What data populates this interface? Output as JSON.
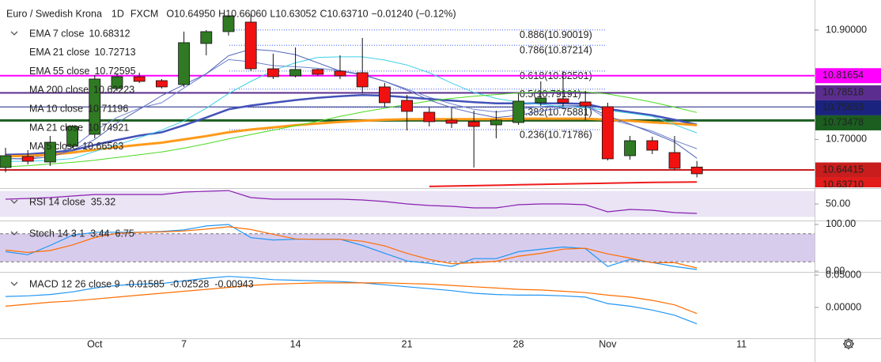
{
  "chart_data": [
    {
      "type": "candlestick",
      "title": "Euro / Swedish Krona",
      "interval": "1D",
      "source": "FXCM",
      "ohlc_labels": [
        "O10.64950",
        "H10.66060",
        "L10.63052",
        "C10.63710"
      ],
      "change": "−0.01240 (−0.12%)",
      "categories": [
        null,
        null,
        null,
        null,
        "Oct",
        null,
        null,
        null,
        "7",
        null,
        null,
        null,
        null,
        "14",
        null,
        null,
        null,
        null,
        "21",
        null,
        null,
        null,
        null,
        "28",
        null,
        null,
        null,
        "Nov",
        null,
        null,
        null,
        null,
        null,
        "11"
      ],
      "open": [
        10.6486,
        10.6688,
        10.6587,
        10.6876,
        10.7093,
        10.7931,
        10.8147,
        10.8075,
        10.8003,
        10.8754,
        10.8971,
        10.9145,
        10.8292,
        10.8162,
        10.8278,
        10.8249,
        10.822,
        10.796,
        10.7714,
        10.7497,
        10.7353,
        10.7324,
        10.7266,
        10.7309,
        10.7671,
        10.7743,
        10.7685,
        10.7598,
        10.6702,
        10.6977,
        10.676,
        10.6495,
        null,
        null
      ],
      "high": [
        10.6847,
        10.6803,
        10.7064,
        10.7266,
        10.8176,
        10.8191,
        10.822,
        10.8104,
        10.8971,
        10.9,
        10.9347,
        10.9289,
        10.8567,
        10.8682,
        10.8292,
        10.8538,
        10.8855,
        10.8032,
        10.7815,
        10.7598,
        10.7569,
        10.7526,
        10.7526,
        10.7844,
        10.8061,
        10.8249,
        10.7887,
        10.7671,
        10.7064,
        10.7049,
        10.7064,
        10.6606,
        null,
        null
      ],
      "low": [
        10.6399,
        10.6543,
        10.6515,
        10.6847,
        10.702,
        10.7887,
        10.8032,
        10.7931,
        10.796,
        10.8538,
        10.8899,
        10.8249,
        10.8104,
        10.8133,
        10.8162,
        10.8104,
        10.7844,
        10.7598,
        10.7165,
        10.7237,
        10.7208,
        10.6486,
        10.702,
        10.7266,
        10.7613,
        10.7598,
        10.7353,
        10.6616,
        10.663,
        10.6731,
        10.6442,
        10.63052,
        null,
        null
      ],
      "close": [
        10.6702,
        10.6601,
        10.6948,
        10.7237,
        10.8104,
        10.8147,
        10.8061,
        10.796,
        10.8769,
        10.8971,
        10.926,
        10.8292,
        10.8147,
        10.8278,
        10.8191,
        10.8162,
        10.796,
        10.7671,
        10.7512,
        10.7324,
        10.7295,
        10.7237,
        10.7353,
        10.77,
        10.7757,
        10.7671,
        10.7613,
        10.6645,
        10.6977,
        10.6803,
        10.6471,
        10.6371,
        null,
        null
      ],
      "up_color": "#2f7a22",
      "down_color": "#f21111",
      "ylim": [
        10.6124,
        10.9549
      ],
      "yticks": [
        {
          "value": 10.9,
          "label": "10.90000"
        },
        {
          "value": 10.7,
          "label": "10.70000"
        }
      ],
      "series": [
        {
          "name": "EMA 7 close",
          "color": "#6f82cf",
          "width": 1,
          "values": [
            10.665,
            10.665,
            10.672,
            10.685,
            10.716,
            10.74,
            10.757,
            10.767,
            10.794,
            10.82,
            10.846,
            10.842,
            10.835,
            10.833,
            10.83,
            10.826,
            10.819,
            10.806,
            10.792,
            10.777,
            10.765,
            10.755,
            10.75,
            10.755,
            10.76,
            10.762,
            10.762,
            10.737,
            10.727,
            10.715,
            10.698,
            10.68312,
            null,
            null
          ]
        },
        {
          "name": "EMA 21 close",
          "color": "#4352b8",
          "width": 2.5,
          "values": [
            10.672,
            10.673,
            10.676,
            10.68,
            10.69,
            10.699,
            10.707,
            10.713,
            10.726,
            10.74,
            10.755,
            10.762,
            10.767,
            10.772,
            10.776,
            10.779,
            10.781,
            10.78,
            10.777,
            10.774,
            10.771,
            10.768,
            10.766,
            10.766,
            10.766,
            10.766,
            10.765,
            10.756,
            10.75,
            10.744,
            10.736,
            10.72713,
            null,
            null
          ]
        },
        {
          "name": "EMA 55 close",
          "color": "#ff9a1a",
          "width": 3,
          "values": [
            10.669,
            10.67,
            10.672,
            10.676,
            10.681,
            10.686,
            10.69,
            10.694,
            10.7,
            10.706,
            10.713,
            10.718,
            10.722,
            10.726,
            10.729,
            10.732,
            10.734,
            10.736,
            10.737,
            10.737,
            10.737,
            10.737,
            10.737,
            10.738,
            10.738,
            10.738,
            10.738,
            10.736,
            10.734,
            10.731,
            10.729,
            10.72595,
            null,
            null
          ]
        },
        {
          "name": "MA 200 close",
          "color": "#ee1c1c",
          "width": 2,
          "values": [
            null,
            null,
            null,
            null,
            null,
            null,
            null,
            null,
            null,
            null,
            null,
            null,
            null,
            null,
            null,
            null,
            null,
            null,
            null,
            10.614,
            10.6147,
            10.6155,
            10.6162,
            10.617,
            10.6177,
            10.6185,
            10.6192,
            10.6199,
            10.6206,
            10.6213,
            10.6218,
            10.62223,
            null,
            null
          ]
        },
        {
          "name": "MA 10 close",
          "color": "#3fd0e6",
          "width": 1,
          "values": [
            10.66,
            10.66,
            10.662,
            10.665,
            10.678,
            10.69,
            10.703,
            10.717,
            10.734,
            10.757,
            10.784,
            10.806,
            10.826,
            10.84,
            10.85,
            10.851,
            10.851,
            10.845,
            10.836,
            10.822,
            10.803,
            10.786,
            10.775,
            10.768,
            10.764,
            10.76,
            10.758,
            10.753,
            10.748,
            10.742,
            10.727,
            10.71196,
            null,
            null
          ]
        },
        {
          "name": "MA 21 close",
          "color": "#4cd91f",
          "width": 1,
          "values": [
            10.65,
            10.652,
            10.655,
            10.658,
            10.662,
            10.667,
            10.672,
            10.677,
            10.684,
            10.692,
            10.701,
            10.709,
            10.717,
            10.725,
            10.733,
            10.742,
            10.75,
            10.757,
            10.764,
            10.77,
            10.775,
            10.779,
            10.782,
            10.785,
            10.787,
            10.788,
            10.787,
            10.783,
            10.776,
            10.768,
            10.759,
            10.74921,
            null,
            null
          ]
        },
        {
          "name": "MA 5 close",
          "color": "#5566b8",
          "width": 1,
          "values": [
            10.665,
            10.664,
            10.668,
            10.68,
            10.7,
            10.73,
            10.755,
            10.78,
            10.8,
            10.82,
            10.853,
            10.865,
            10.862,
            10.855,
            10.84,
            10.825,
            10.818,
            10.806,
            10.79,
            10.772,
            10.758,
            10.748,
            10.74,
            10.744,
            10.752,
            10.758,
            10.762,
            10.743,
            10.728,
            10.712,
            10.695,
            10.66563,
            null,
            null
          ]
        }
      ],
      "levels": [
        {
          "value": 10.81654,
          "color": "#ff00ff",
          "width": 2
        },
        {
          "value": 10.78518,
          "color": "#5b2d8f",
          "width": 2
        },
        {
          "value": 10.75953,
          "color": "#1a237e",
          "width": 1
        },
        {
          "value": 10.73478,
          "color": "#1b5e20",
          "width": 3
        },
        {
          "value": 10.64415,
          "color": "#c81d1d",
          "width": 2
        }
      ],
      "price_tag": {
        "value": 10.6371,
        "label": "10.63710",
        "color": "#e21b1b"
      },
      "fib": [
        {
          "value": 10.90019,
          "label": "0.886(10.90019)"
        },
        {
          "value": 10.87214,
          "label": "0.786(10.87214)"
        },
        {
          "value": 10.82501,
          "label": "0.618(10.82501)"
        },
        {
          "value": 10.79191,
          "label": "0.5(10.79191)"
        },
        {
          "value": 10.75881,
          "label": "0.382(10.75881)"
        },
        {
          "value": 10.71786,
          "label": "0.236(10.71786)"
        }
      ]
    },
    {
      "type": "line",
      "name": "RSI 14 close",
      "ylim": [
        25.6,
        72
      ],
      "yticks": [
        {
          "value": 50,
          "label": "50.00"
        }
      ],
      "band": [
        30,
        70
      ],
      "band_color": "rgba(126,87,194,0.16)",
      "series": [
        {
          "color": "#8a1fb0",
          "values": [
            57.3,
            58.5,
            59.8,
            62.2,
            64.6,
            64.6,
            64.6,
            64.6,
            68.3,
            69.5,
            70.7,
            59.8,
            57.3,
            57.3,
            57.3,
            57.3,
            56.1,
            53.7,
            50,
            47.6,
            46.3,
            43.9,
            43.9,
            48.8,
            50,
            50,
            48.8,
            37.8,
            41.5,
            40.2,
            36.6,
            35.32,
            null,
            null
          ]
        }
      ]
    },
    {
      "type": "line",
      "name": "Stoch 14 3 1",
      "ylim": [
        0,
        105
      ],
      "yticks": [
        {
          "value": 100,
          "label": "100.00"
        },
        {
          "value": 0,
          "label": "0.00"
        }
      ],
      "band": [
        20,
        80
      ],
      "band_color": "rgba(126,87,194,0.3)",
      "series": [
        {
          "color": "#2196f3",
          "values": [
            41.7,
            35,
            55,
            76.7,
            83.3,
            83.3,
            83.3,
            85,
            88.3,
            96.7,
            100,
            71.7,
            66.7,
            68.3,
            68.3,
            68.3,
            55,
            38.3,
            21.7,
            16.7,
            10,
            26.7,
            26.7,
            41.7,
            46.7,
            51.7,
            48.3,
            10,
            25,
            18.3,
            10,
            3.44,
            null,
            null
          ]
        },
        {
          "color": "#ff6d00",
          "values": [
            45,
            40,
            44,
            56,
            72,
            81,
            83,
            84,
            86,
            90,
            95,
            89,
            79,
            69,
            68,
            68,
            64,
            54,
            38,
            25,
            16,
            18,
            21,
            32,
            38,
            47,
            49,
            37,
            28,
            18,
            18,
            6.75,
            null,
            null
          ]
        }
      ]
    },
    {
      "type": "line",
      "name": "MACD 12 26 close 9",
      "histogram_last": -0.01585,
      "histogram_color": "#8b1a1a",
      "ylim": [
        -0.0476,
        0.0537
      ],
      "yticks": [
        {
          "value": 0.05,
          "label": "0.05000"
        },
        {
          "value": 0,
          "label": "0.00000"
        }
      ],
      "series": [
        {
          "color": "#2196f3",
          "values": [
            0.017,
            0.018,
            0.02,
            0.024,
            0.03,
            0.034,
            0.036,
            0.037,
            0.041,
            0.045,
            0.048,
            0.046,
            0.043,
            0.042,
            0.041,
            0.04,
            0.038,
            0.035,
            0.032,
            0.029,
            0.026,
            0.022,
            0.02,
            0.019,
            0.019,
            0.018,
            0.016,
            0.006,
            0.002,
            -0.004,
            -0.012,
            -0.02528,
            null,
            null
          ]
        },
        {
          "color": "#ff6d00",
          "values": [
            0.002,
            0.005,
            0.008,
            0.01,
            0.013,
            0.016,
            0.019,
            0.022,
            0.025,
            0.028,
            0.031,
            0.034,
            0.036,
            0.037,
            0.038,
            0.038,
            0.038,
            0.038,
            0.037,
            0.036,
            0.034,
            0.032,
            0.03,
            0.028,
            0.027,
            0.025,
            0.023,
            0.019,
            0.016,
            0.011,
            0.004,
            -0.00943,
            null,
            null
          ]
        }
      ]
    }
  ]
}
